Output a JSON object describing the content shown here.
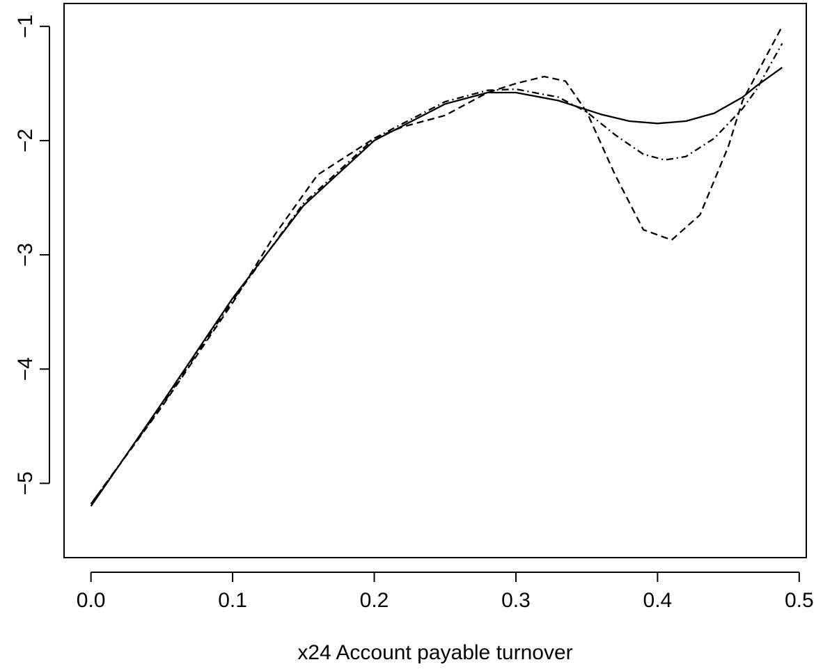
{
  "chart_data": {
    "type": "line",
    "title": "",
    "xlabel": "x24 Account payable turnover",
    "ylabel": "",
    "xlim": [
      -0.019,
      0.505
    ],
    "ylim": [
      -5.65,
      -0.8
    ],
    "x_ticks": [
      0.0,
      0.1,
      0.2,
      0.3,
      0.4,
      0.5
    ],
    "x_tick_labels": [
      "0.0",
      "0.1",
      "0.2",
      "0.3",
      "0.4",
      "0.5"
    ],
    "y_ticks": [
      -5,
      -4,
      -3,
      -2,
      -1
    ],
    "y_tick_labels": [
      "−5",
      "−4",
      "−3",
      "−2",
      "−1"
    ],
    "grid": false,
    "legend": "none",
    "series": [
      {
        "style": "solid",
        "x": [
          0.0,
          0.05,
          0.1,
          0.15,
          0.2,
          0.25,
          0.28,
          0.3,
          0.33,
          0.36,
          0.38,
          0.4,
          0.42,
          0.44,
          0.46,
          0.47,
          0.488
        ],
        "y": [
          -5.2,
          -4.3,
          -3.38,
          -2.57,
          -2.0,
          -1.68,
          -1.58,
          -1.58,
          -1.65,
          -1.77,
          -1.83,
          -1.85,
          -1.83,
          -1.76,
          -1.62,
          -1.52,
          -1.36
        ]
      },
      {
        "style": "dashdot",
        "x": [
          0.0,
          0.05,
          0.1,
          0.15,
          0.2,
          0.25,
          0.28,
          0.3,
          0.33,
          0.35,
          0.37,
          0.39,
          0.405,
          0.42,
          0.44,
          0.46,
          0.47,
          0.488
        ],
        "y": [
          -5.18,
          -4.32,
          -3.4,
          -2.55,
          -1.98,
          -1.66,
          -1.56,
          -1.55,
          -1.62,
          -1.75,
          -1.95,
          -2.12,
          -2.17,
          -2.14,
          -1.98,
          -1.72,
          -1.55,
          -1.15
        ]
      },
      {
        "style": "dashed",
        "x": [
          0.0,
          0.05,
          0.1,
          0.13,
          0.16,
          0.2,
          0.22,
          0.25,
          0.28,
          0.3,
          0.32,
          0.335,
          0.35,
          0.37,
          0.39,
          0.41,
          0.43,
          0.45,
          0.46,
          0.475,
          0.488
        ],
        "y": [
          -5.18,
          -4.33,
          -3.42,
          -2.82,
          -2.3,
          -1.98,
          -1.88,
          -1.78,
          -1.58,
          -1.5,
          -1.44,
          -1.48,
          -1.75,
          -2.3,
          -2.78,
          -2.87,
          -2.65,
          -2.05,
          -1.65,
          -1.3,
          -1.0
        ]
      }
    ]
  }
}
